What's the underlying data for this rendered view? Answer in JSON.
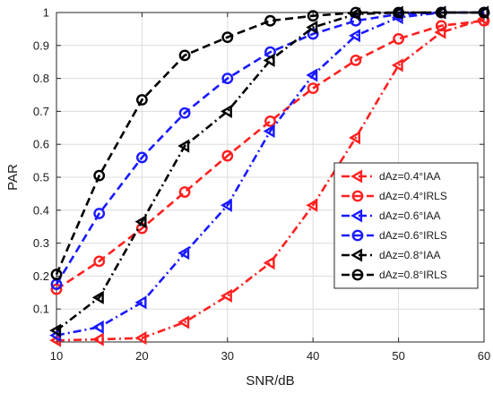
{
  "chart_data": {
    "type": "line",
    "title": "",
    "xlabel": "SNR/dB",
    "ylabel": "PAR",
    "xlim": [
      10,
      60
    ],
    "ylim": [
      0,
      1
    ],
    "x_ticks": [
      10,
      20,
      30,
      40,
      50,
      60
    ],
    "y_ticks": [
      0.1,
      0.2,
      0.3,
      0.4,
      0.5,
      0.6,
      0.7,
      0.8,
      0.9,
      1
    ],
    "grid": true,
    "legend_position": "bottom-right",
    "x": [
      10,
      15,
      20,
      25,
      30,
      35,
      40,
      45,
      50,
      55,
      60
    ],
    "series": [
      {
        "name": "dAz=0.4°IAA",
        "color": "#ff2020",
        "line_style": "dash-dot",
        "marker": "triangle-left",
        "values": [
          0.005,
          0.008,
          0.012,
          0.06,
          0.14,
          0.24,
          0.415,
          0.62,
          0.84,
          0.94,
          0.98
        ]
      },
      {
        "name": "dAz=0.4°IRLS",
        "color": "#ff2020",
        "line_style": "dash",
        "marker": "circle",
        "values": [
          0.16,
          0.245,
          0.345,
          0.455,
          0.565,
          0.67,
          0.77,
          0.855,
          0.92,
          0.96,
          0.975
        ]
      },
      {
        "name": "dAz=0.6°IAA",
        "color": "#1a1aff",
        "line_style": "dash-dot",
        "marker": "triangle-left",
        "values": [
          0.02,
          0.045,
          0.12,
          0.27,
          0.415,
          0.64,
          0.81,
          0.93,
          0.985,
          1.0,
          1.0
        ]
      },
      {
        "name": "dAz=0.6°IRLS",
        "color": "#1a1aff",
        "line_style": "dash",
        "marker": "circle",
        "values": [
          0.175,
          0.39,
          0.56,
          0.695,
          0.8,
          0.88,
          0.935,
          0.975,
          0.995,
          1.0,
          1.0
        ]
      },
      {
        "name": "dAz=0.8°IAA",
        "color": "#000000",
        "line_style": "dash-dot",
        "marker": "triangle-left",
        "values": [
          0.035,
          0.135,
          0.365,
          0.595,
          0.7,
          0.855,
          0.955,
          0.995,
          1.0,
          1.0,
          1.0
        ]
      },
      {
        "name": "dAz=0.8°IRLS",
        "color": "#000000",
        "line_style": "dash",
        "marker": "circle",
        "values": [
          0.205,
          0.505,
          0.735,
          0.87,
          0.925,
          0.975,
          0.99,
          1.0,
          1.0,
          1.0,
          1.0
        ]
      }
    ]
  }
}
